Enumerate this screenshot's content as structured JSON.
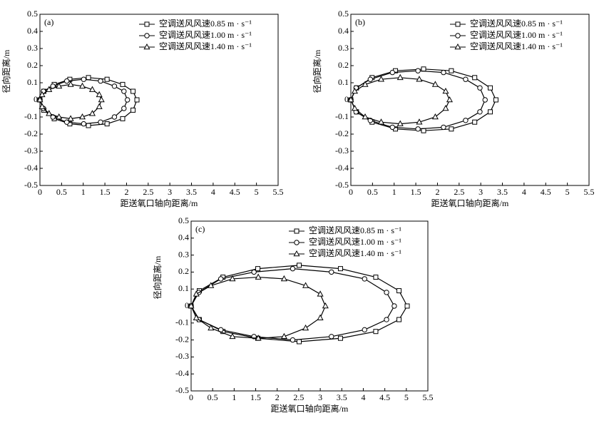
{
  "chart_data": [
    {
      "type": "line",
      "panel": "(a)",
      "x_label": "距送氧口轴向距离/m",
      "y_label": "径向距离/m",
      "xlim": [
        0,
        5.5
      ],
      "ylim": [
        -0.5,
        0.5
      ],
      "xticks": [
        0,
        0.5,
        1,
        1.5,
        2,
        2.5,
        3,
        3.5,
        4,
        4.5,
        5,
        5.5
      ],
      "yticks": [
        -0.5,
        -0.4,
        -0.3,
        -0.2,
        -0.1,
        0,
        0.1,
        0.2,
        0.3,
        0.4,
        0.5
      ],
      "legend": "upper right",
      "series": [
        {
          "name": "空调送风风速0.85 m · s⁻¹",
          "color": "#000000",
          "marker": "square",
          "x": [
            2.24,
            2.15,
            1.91,
            1.55,
            1.12,
            0.69,
            0.33,
            0.09,
            0,
            0.09,
            0.33,
            0.69,
            1.12,
            1.55,
            1.91,
            2.15
          ],
          "values": [
            0,
            0.05,
            0.09,
            0.12,
            0.13,
            0.12,
            0.09,
            0.05,
            0,
            -0.06,
            -0.11,
            -0.14,
            -0.15,
            -0.14,
            -0.11,
            -0.06
          ]
        },
        {
          "name": "空调送风风速1.00 m · s⁻¹",
          "color": "#000000",
          "marker": "circle",
          "x": [
            2.02,
            1.94,
            1.72,
            1.4,
            1.01,
            0.62,
            0.3,
            0.08,
            0,
            0.08,
            0.3,
            0.62,
            1.01,
            1.4,
            1.72,
            1.94
          ],
          "values": [
            0,
            0.05,
            0.08,
            0.11,
            0.12,
            0.11,
            0.08,
            0.05,
            0,
            -0.05,
            -0.1,
            -0.13,
            -0.14,
            -0.13,
            -0.1,
            -0.05
          ]
        },
        {
          "name": "空调送风风速1.40 m · s⁻¹",
          "color": "#000000",
          "marker": "triangle",
          "x": [
            1.42,
            1.37,
            1.21,
            0.98,
            0.71,
            0.44,
            0.21,
            0.05,
            0,
            0.05,
            0.21,
            0.44,
            0.71,
            0.98,
            1.21,
            1.37
          ],
          "values": [
            0,
            0.03,
            0.06,
            0.08,
            0.09,
            0.08,
            0.06,
            0.03,
            0,
            -0.04,
            -0.08,
            -0.1,
            -0.11,
            -0.1,
            -0.08,
            -0.04
          ]
        }
      ]
    },
    {
      "type": "line",
      "panel": "(b)",
      "x_label": "距送氧口轴向距离/m",
      "y_label": "径向距离/m",
      "xlim": [
        0,
        5.5
      ],
      "ylim": [
        -0.5,
        0.5
      ],
      "xticks": [
        0,
        0.5,
        1,
        1.5,
        2,
        2.5,
        3,
        3.5,
        4,
        4.5,
        5,
        5.5
      ],
      "yticks": [
        -0.5,
        -0.4,
        -0.3,
        -0.2,
        -0.1,
        0,
        0.1,
        0.2,
        0.3,
        0.4,
        0.5
      ],
      "legend": "upper right",
      "series": [
        {
          "name": "空调送风风速0.85 m · s⁻¹",
          "color": "#000000",
          "marker": "square",
          "x": [
            3.35,
            3.22,
            2.86,
            2.32,
            1.68,
            1.03,
            0.49,
            0.13,
            0,
            0.13,
            0.49,
            1.03,
            1.68,
            2.32,
            2.86,
            3.22
          ],
          "values": [
            0,
            0.07,
            0.13,
            0.17,
            0.18,
            0.17,
            0.13,
            0.07,
            0,
            -0.07,
            -0.13,
            -0.17,
            -0.18,
            -0.17,
            -0.13,
            -0.07
          ]
        },
        {
          "name": "空调送风风速1.00 m · s⁻¹",
          "color": "#000000",
          "marker": "circle",
          "x": [
            3.1,
            2.98,
            2.65,
            2.14,
            1.55,
            0.96,
            0.45,
            0.12,
            0,
            0.12,
            0.45,
            0.96,
            1.55,
            2.14,
            2.65,
            2.98
          ],
          "values": [
            0,
            0.07,
            0.12,
            0.16,
            0.17,
            0.16,
            0.12,
            0.07,
            0,
            -0.07,
            -0.12,
            -0.16,
            -0.17,
            -0.16,
            -0.12,
            -0.07
          ]
        },
        {
          "name": "空调送风风速1.40 m · s⁻¹",
          "color": "#000000",
          "marker": "triangle",
          "x": [
            2.28,
            2.19,
            1.95,
            1.58,
            1.14,
            0.7,
            0.33,
            0.09,
            0,
            0.09,
            0.33,
            0.7,
            1.14,
            1.58,
            1.95,
            2.19
          ],
          "values": [
            0,
            0.05,
            0.09,
            0.12,
            0.13,
            0.12,
            0.09,
            0.05,
            0,
            -0.05,
            -0.1,
            -0.13,
            -0.14,
            -0.13,
            -0.1,
            -0.05
          ]
        }
      ]
    },
    {
      "type": "line",
      "panel": "(c)",
      "x_label": "距送氧口轴向距离/m",
      "y_label": "径向距离/m",
      "xlim": [
        0,
        5.5
      ],
      "ylim": [
        -0.5,
        0.5
      ],
      "xticks": [
        0,
        0.5,
        1,
        1.5,
        2,
        2.5,
        3,
        3.5,
        4,
        4.5,
        5,
        5.5
      ],
      "yticks": [
        -0.5,
        -0.4,
        -0.3,
        -0.2,
        -0.1,
        0,
        0.1,
        0.2,
        0.3,
        0.4,
        0.5
      ],
      "legend": "upper right",
      "series": [
        {
          "name": "空调送风风速0.85 m · s⁻¹",
          "color": "#000000",
          "marker": "square",
          "x": [
            5.02,
            4.83,
            4.29,
            3.47,
            2.51,
            1.55,
            0.74,
            0.19,
            0,
            0.19,
            0.74,
            1.55,
            2.51,
            3.47,
            4.29,
            4.83
          ],
          "values": [
            0,
            0.09,
            0.17,
            0.22,
            0.24,
            0.22,
            0.17,
            0.09,
            0,
            -0.08,
            -0.15,
            -0.19,
            -0.21,
            -0.19,
            -0.15,
            -0.08
          ]
        },
        {
          "name": "空调送风风速1.00 m · s⁻¹",
          "color": "#000000",
          "marker": "circle",
          "x": [
            4.72,
            4.54,
            4.03,
            3.26,
            2.36,
            1.46,
            0.69,
            0.18,
            0,
            0.18,
            0.69,
            1.46,
            2.36,
            3.26,
            4.03,
            4.54
          ],
          "values": [
            0,
            0.08,
            0.16,
            0.2,
            0.22,
            0.2,
            0.16,
            0.08,
            0,
            -0.08,
            -0.14,
            -0.18,
            -0.2,
            -0.18,
            -0.14,
            -0.08
          ]
        },
        {
          "name": "空调送风风速1.40 m · s⁻¹",
          "color": "#000000",
          "marker": "triangle",
          "x": [
            3.12,
            3.0,
            2.66,
            2.16,
            1.56,
            0.96,
            0.46,
            0.12,
            0,
            0.12,
            0.46,
            0.96,
            1.56,
            2.16,
            2.66,
            3.0
          ],
          "values": [
            0,
            0.07,
            0.12,
            0.16,
            0.17,
            0.16,
            0.12,
            0.07,
            0,
            -0.07,
            -0.13,
            -0.18,
            -0.19,
            -0.18,
            -0.13,
            -0.07
          ]
        }
      ]
    }
  ]
}
